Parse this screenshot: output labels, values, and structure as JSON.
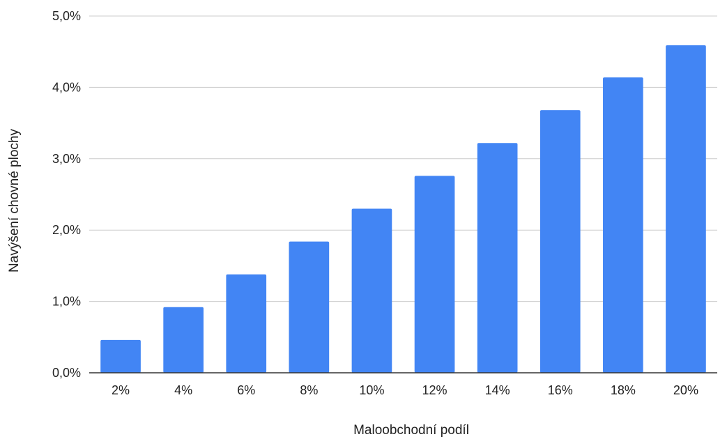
{
  "chart_data": {
    "type": "bar",
    "xlabel": "Maloobchodní podíl",
    "ylabel": "Navýšení chovné plochy",
    "categories": [
      "2%",
      "4%",
      "6%",
      "8%",
      "10%",
      "12%",
      "14%",
      "16%",
      "18%",
      "20%"
    ],
    "values": [
      0.46,
      0.92,
      1.38,
      1.84,
      2.3,
      2.76,
      3.22,
      3.68,
      4.14,
      4.59
    ],
    "ylim": [
      0,
      5
    ],
    "yticks": [
      0,
      1,
      2,
      3,
      4,
      5
    ],
    "ytick_labels": [
      "0,0%",
      "1,0%",
      "2,0%",
      "3,0%",
      "4,0%",
      "5,0%"
    ],
    "grid": true,
    "legend": "none",
    "bar_color": "#4285f4"
  }
}
